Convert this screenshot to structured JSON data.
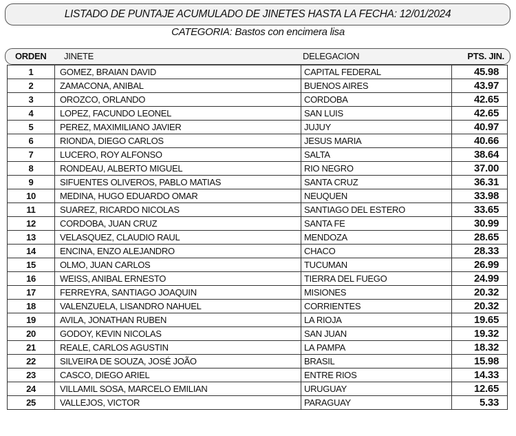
{
  "title": "LISTADO DE PUNTAJE ACUMULADO DE JINETES HASTA LA FECHA: 12/01/2024",
  "subtitle": "CATEGORIA: Bastos con encimera lisa",
  "headers": {
    "orden": "ORDEN",
    "jinete": "JINETE",
    "delegacion": "DELEGACION",
    "pts": "PTS. JIN."
  },
  "rows": [
    {
      "orden": "1",
      "jinete": "GOMEZ, BRAIAN DAVID",
      "delegacion": "CAPITAL FEDERAL",
      "pts": "45.98"
    },
    {
      "orden": "2",
      "jinete": "ZAMACONA, ANIBAL",
      "delegacion": "BUENOS AIRES",
      "pts": "43.97"
    },
    {
      "orden": "3",
      "jinete": "OROZCO, ORLANDO",
      "delegacion": "CORDOBA",
      "pts": "42.65"
    },
    {
      "orden": "4",
      "jinete": "LOPEZ, FACUNDO LEONEL",
      "delegacion": "SAN LUIS",
      "pts": "42.65"
    },
    {
      "orden": "5",
      "jinete": "PEREZ, MAXIMILIANO JAVIER",
      "delegacion": "JUJUY",
      "pts": "40.97"
    },
    {
      "orden": "6",
      "jinete": "RIONDA, DIEGO CARLOS",
      "delegacion": "JESUS MARIA",
      "pts": "40.66"
    },
    {
      "orden": "7",
      "jinete": "LUCERO, ROY ALFONSO",
      "delegacion": "SALTA",
      "pts": "38.64"
    },
    {
      "orden": "8",
      "jinete": "RONDEAU, ALBERTO MIGUEL",
      "delegacion": "RIO NEGRO",
      "pts": "37.00"
    },
    {
      "orden": "9",
      "jinete": "SIFUENTES OLIVEROS, PABLO MATIAS",
      "delegacion": "SANTA CRUZ",
      "pts": "36.31"
    },
    {
      "orden": "10",
      "jinete": "MEDINA, HUGO EDUARDO OMAR",
      "delegacion": "NEUQUEN",
      "pts": "33.98"
    },
    {
      "orden": "11",
      "jinete": "SUAREZ, RICARDO NICOLAS",
      "delegacion": "SANTIAGO DEL ESTERO",
      "pts": "33.65"
    },
    {
      "orden": "12",
      "jinete": "CORDOBA, JUAN CRUZ",
      "delegacion": "SANTA FE",
      "pts": "30.99"
    },
    {
      "orden": "13",
      "jinete": "VELASQUEZ, CLAUDIO RAUL",
      "delegacion": "MENDOZA",
      "pts": "28.65"
    },
    {
      "orden": "14",
      "jinete": "ENCINA, ENZO ALEJANDRO",
      "delegacion": "CHACO",
      "pts": "28.33"
    },
    {
      "orden": "15",
      "jinete": "OLMO, JUAN CARLOS",
      "delegacion": "TUCUMAN",
      "pts": "26.99"
    },
    {
      "orden": "16",
      "jinete": "WEISS, ANIBAL ERNESTO",
      "delegacion": "TIERRA DEL FUEGO",
      "pts": "24.99"
    },
    {
      "orden": "17",
      "jinete": "FERREYRA, SANTIAGO JOAQUIN",
      "delegacion": "MISIONES",
      "pts": "20.32"
    },
    {
      "orden": "18",
      "jinete": "VALENZUELA, LISANDRO NAHUEL",
      "delegacion": "CORRIENTES",
      "pts": "20.32"
    },
    {
      "orden": "19",
      "jinete": "AVILA, JONATHAN RUBEN",
      "delegacion": "LA RIOJA",
      "pts": "19.65"
    },
    {
      "orden": "20",
      "jinete": "GODOY, KEVIN NICOLAS",
      "delegacion": "SAN JUAN",
      "pts": "19.32"
    },
    {
      "orden": "21",
      "jinete": "REALE, CARLOS AGUSTIN",
      "delegacion": "LA PAMPA",
      "pts": "18.32"
    },
    {
      "orden": "22",
      "jinete": "SILVEIRA DE SOUZA, JOSÉ JOÃO",
      "delegacion": "BRASIL",
      "pts": "15.98"
    },
    {
      "orden": "23",
      "jinete": "CASCO, DIEGO ARIEL",
      "delegacion": "ENTRE RIOS",
      "pts": "14.33"
    },
    {
      "orden": "24",
      "jinete": "VILLAMIL SOSA, MARCELO EMILIAN",
      "delegacion": "URUGUAY",
      "pts": "12.65"
    },
    {
      "orden": "25",
      "jinete": "VALLEJOS, VICTOR",
      "delegacion": "PARAGUAY",
      "pts": "5.33"
    }
  ]
}
